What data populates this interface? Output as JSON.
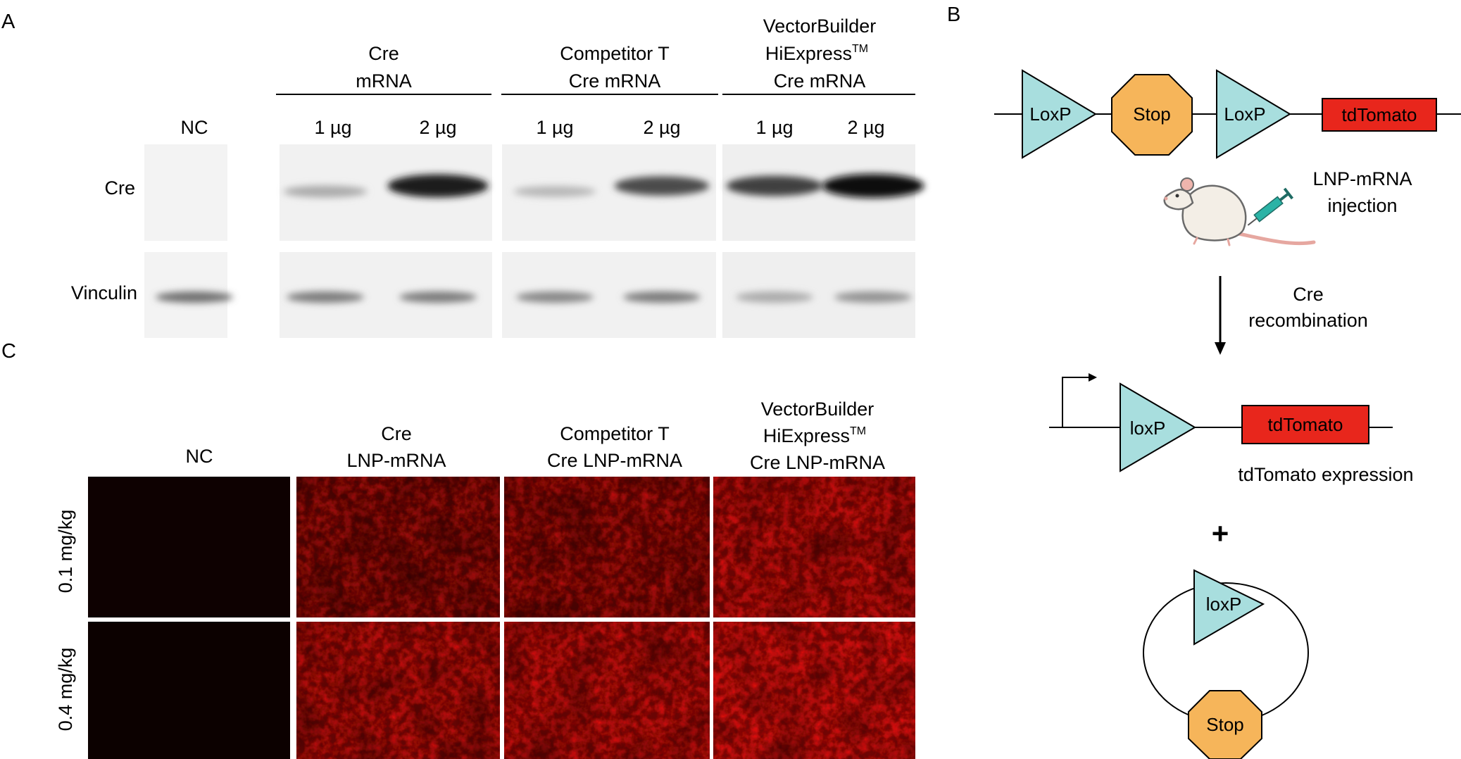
{
  "panel_a": {
    "letter": "A",
    "groups": [
      {
        "lines": [
          "Cre",
          "mRNA"
        ]
      },
      {
        "lines": [
          "Competitor T",
          "Cre mRNA"
        ]
      },
      {
        "lines": [
          "VectorBuilder",
          "HiExpress",
          "Cre mRNA"
        ],
        "tm": "TM"
      }
    ],
    "lane_labels": [
      "NC",
      "1 µg",
      "2 µg",
      "1 µg",
      "2 µg",
      "1 µg",
      "2 µg"
    ],
    "row_labels": [
      "Cre",
      "Vinculin"
    ],
    "cre_band_levels": [
      0,
      0.35,
      0.95,
      0.3,
      0.75,
      0.8,
      1.0
    ],
    "vinculin_band_levels": [
      0.6,
      0.55,
      0.55,
      0.5,
      0.55,
      0.35,
      0.45
    ]
  },
  "panel_b": {
    "letter": "B",
    "loxp1": "LoxP",
    "stop1": "Stop",
    "loxp2": "LoxP",
    "tdtomato1": "tdTomato",
    "injection_lines": [
      "LNP-mRNA",
      "injection"
    ],
    "recombination_lines": [
      "Cre",
      "recombination"
    ],
    "loxp3": "loxP",
    "tdtomato2": "tdTomato",
    "expression": "tdTomato expression",
    "plus": "+",
    "loxp4": "loxP",
    "stop2": "Stop",
    "colors": {
      "loxp": "#a8dede",
      "stop": "#f6b55a",
      "tdtomato": "#e8261c"
    }
  },
  "panel_c": {
    "letter": "C",
    "columns": [
      {
        "lines": [
          "NC"
        ]
      },
      {
        "lines": [
          "Cre",
          "LNP-mRNA"
        ]
      },
      {
        "lines": [
          "Competitor T",
          "Cre LNP-mRNA"
        ]
      },
      {
        "lines": [
          "VectorBuilder",
          "HiExpress",
          "Cre LNP-mRNA"
        ],
        "tm": "TM"
      }
    ],
    "rows": [
      "0.1 mg/kg",
      "0.4 mg/kg"
    ],
    "fluorescence_levels": [
      [
        0.03,
        0.55,
        0.6,
        0.8
      ],
      [
        0.02,
        0.75,
        0.8,
        0.9
      ]
    ]
  }
}
